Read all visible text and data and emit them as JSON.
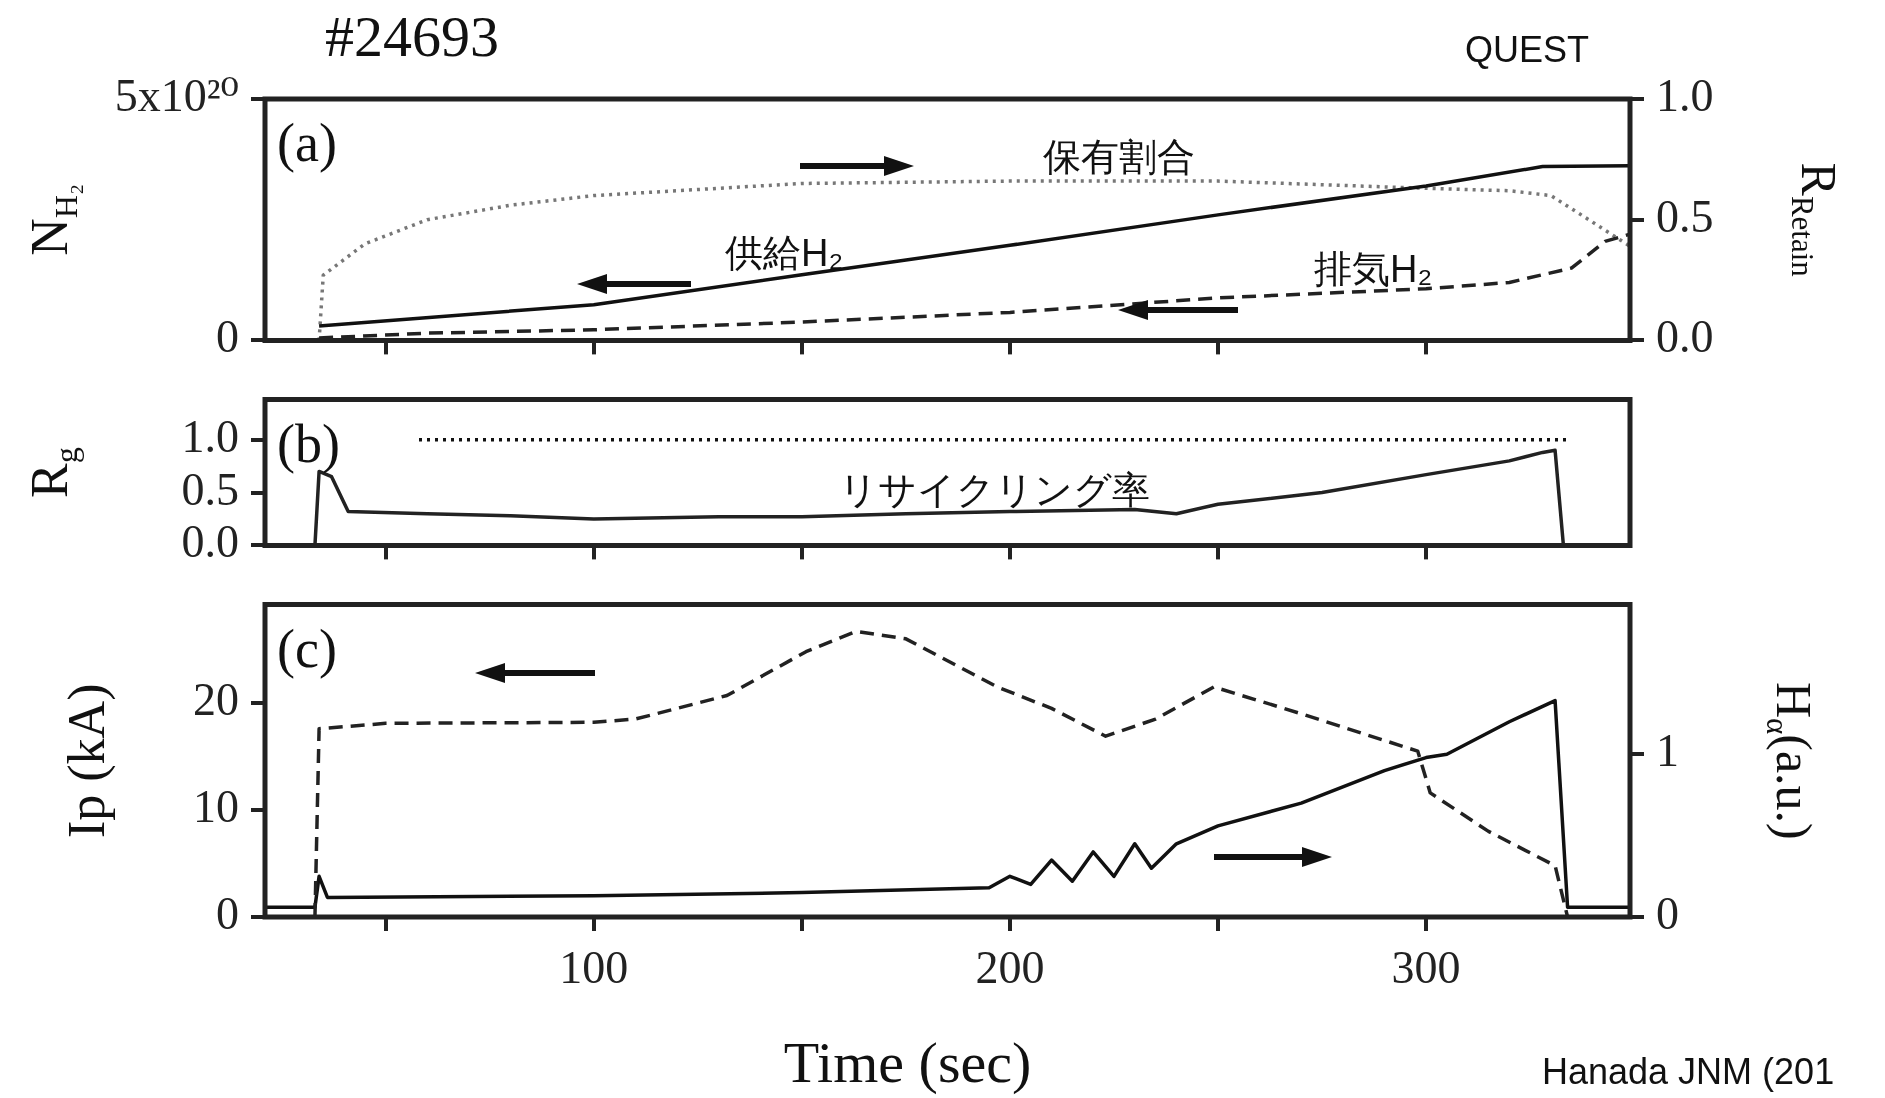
{
  "chart_data": [
    {
      "type": "line",
      "title": "#24693",
      "ylabel": "N$_{H₂}$",
      "y2label": "R$_{Retain}$",
      "xlim": [
        21,
        349
      ],
      "xticks": [
        {
          "value": 50,
          "label": null
        },
        {
          "value": 100,
          "label": null
        },
        {
          "value": 150,
          "label": null
        },
        {
          "value": 200,
          "label": null
        },
        {
          "value": 250,
          "label": null
        },
        {
          "value": 300,
          "label": null
        }
      ],
      "ylim": [
        0,
        5e+20
      ],
      "yticks": [
        0,
        {
          "value": 5e+20,
          "label": "5x10²⁰"
        }
      ],
      "y2lim": [
        0,
        1
      ],
      "y2ticks": [
        {
          "value": 0,
          "label": "0.0"
        },
        {
          "value": 0.5,
          "label": "0.5"
        },
        {
          "value": 1,
          "label": "1.0"
        }
      ],
      "tick_labels": "y",
      "grid": false,
      "legend": false,
      "marker": "none",
      "series": [
        {
          "color": "#111111",
          "line_style": "solid",
          "x": [
            34,
            100,
            150,
            200,
            250,
            300,
            328,
            349
          ],
          "values": [
            3e+19,
            7.4e+19,
            1.36e+20,
            1.97e+20,
            2.6e+20,
            3.2e+20,
            3.6e+20,
            3.62e+20
          ]
        },
        {
          "color": "#222222",
          "line_style": "dashed",
          "x": [
            34,
            60,
            100,
            150,
            200,
            250,
            300,
            320,
            335,
            343,
            349
          ],
          "values": [
            5e+18,
            1.5e+19,
            2.2e+19,
            3.8e+19,
            5.8e+19,
            8.8e+19,
            1.07e+20,
            1.2e+20,
            1.5e+20,
            2.05e+20,
            2.2e+20
          ]
        },
        {
          "color": "#777777",
          "line_style": "dotted",
          "axis": "y2",
          "x": [
            34,
            35,
            45,
            60,
            80,
            100,
            150,
            200,
            250,
            300,
            320,
            330,
            340,
            349
          ],
          "values": [
            0,
            0.27,
            0.4,
            0.5,
            0.56,
            0.6,
            0.65,
            0.66,
            0.66,
            0.63,
            0.62,
            0.6,
            0.49,
            0.39
          ]
        }
      ],
      "annotations": [
        "(a)",
        "QUEST",
        "保有割合",
        "供給H₂",
        "排気H₂"
      ]
    },
    {
      "type": "line",
      "ylabel": "R$_{g}$",
      "xlim": [
        21,
        349
      ],
      "xticks": [
        {
          "value": 50,
          "label": null
        },
        {
          "value": 100,
          "label": null
        },
        {
          "value": 150,
          "label": null
        },
        {
          "value": 200,
          "label": null
        },
        {
          "value": 250,
          "label": null
        },
        {
          "value": 300,
          "label": null
        }
      ],
      "ylim": [
        0,
        1.38
      ],
      "yticks": [
        {
          "value": 0,
          "label": "0.0"
        },
        {
          "value": 0.5,
          "label": "0.5"
        },
        {
          "value": 1,
          "label": "1.0"
        }
      ],
      "tick_labels": "y",
      "grid": false,
      "legend": false,
      "marker": "none",
      "series": [
        {
          "color": "#111111",
          "line_style": "dotted",
          "x": [
            58,
            334
          ],
          "values": [
            1,
            1
          ]
        },
        {
          "color": "#222222",
          "line_style": "solid",
          "x": [
            33,
            34,
            37,
            41,
            60,
            80,
            100,
            130,
            150,
            175,
            200,
            230,
            240,
            250,
            275,
            300,
            320,
            328,
            331,
            333
          ],
          "values": [
            0,
            0.7,
            0.65,
            0.32,
            0.3,
            0.28,
            0.25,
            0.27,
            0.27,
            0.3,
            0.32,
            0.34,
            0.3,
            0.39,
            0.5,
            0.67,
            0.8,
            0.88,
            0.9,
            0
          ]
        }
      ],
      "annotations": [
        "(b)",
        "リサイクリング率"
      ]
    },
    {
      "type": "line",
      "xlabel": "Time (sec)",
      "ylabel": "Ip (kA)",
      "y2label": "H$_{α}$(a.u.)",
      "xlim": [
        21,
        349
      ],
      "xticks": [
        {
          "value": 50,
          "label": null
        },
        100,
        {
          "value": 150,
          "label": null
        },
        200,
        {
          "value": 250,
          "label": null
        },
        300
      ],
      "ylim": [
        0,
        29.2
      ],
      "yticks": [
        0,
        10,
        20
      ],
      "y2lim": [
        0,
        1.92
      ],
      "y2ticks": [
        0,
        1
      ],
      "grid": false,
      "legend": false,
      "marker": "none",
      "series": [
        {
          "color": "#222222",
          "line_style": "dashed",
          "x": [
            33,
            34,
            50,
            100,
            110,
            132,
            151,
            163,
            175,
            197,
            210,
            223,
            235,
            249,
            270,
            290,
            298,
            301,
            315,
            331,
            334
          ],
          "values": [
            0,
            17.6,
            18.1,
            18.2,
            18.5,
            20.7,
            24.8,
            26.7,
            26,
            21.5,
            19.5,
            16.9,
            18.5,
            21.5,
            19,
            16.5,
            15.5,
            11.6,
            8,
            4.8,
            0
          ]
        },
        {
          "color": "#111111",
          "line_style": "solid",
          "axis": "y2",
          "x": [
            21,
            33,
            34,
            36,
            100,
            150,
            195,
            200,
            205,
            210,
            215,
            220,
            225,
            230,
            234,
            240,
            250,
            270,
            290,
            300,
            305,
            320,
            331,
            334,
            349
          ],
          "values": [
            0.06,
            0.06,
            0.25,
            0.12,
            0.13,
            0.15,
            0.18,
            0.25,
            0.2,
            0.35,
            0.22,
            0.4,
            0.25,
            0.45,
            0.3,
            0.45,
            0.56,
            0.7,
            0.9,
            0.98,
            1.0,
            1.2,
            1.33,
            0.06,
            0.06
          ]
        }
      ],
      "annotations": [
        "(c)",
        "Hanada JNM (201"
      ]
    }
  ]
}
